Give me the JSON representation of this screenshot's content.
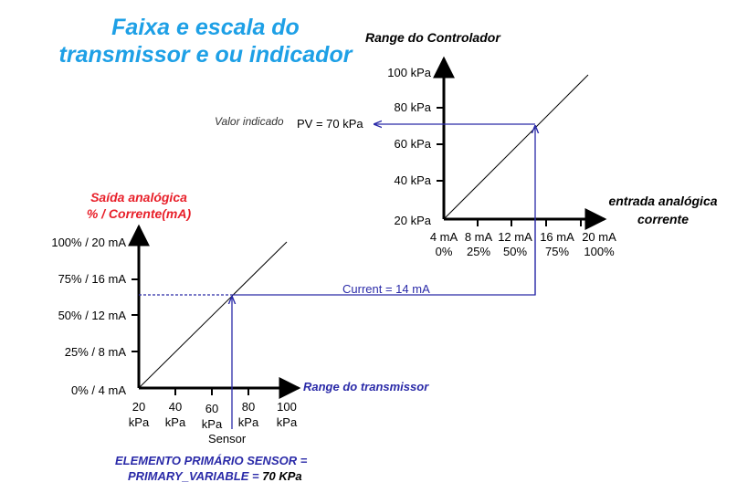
{
  "title": {
    "line1": "Faixa e escala do",
    "line2": "transmissor e ou indicador"
  },
  "controller": {
    "title": "Range do Controlador",
    "y_ticks": [
      "100 kPa",
      "80 kPa",
      "60 kPa",
      "40 kPa",
      "20 kPa"
    ],
    "x_axis_label_1": "entrada analógica",
    "x_axis_label_2": "corrente",
    "x_ticks_ma": [
      "4 mA",
      "8 mA",
      "12 mA",
      "16 mA",
      "20 mA"
    ],
    "x_ticks_pct": [
      "0%",
      "25%",
      "50%",
      "75%",
      "100%"
    ],
    "indicated_label": "Valor indicado",
    "pv_text": "PV = 70 kPa"
  },
  "transmitter": {
    "y_title_1": "Saída analógica",
    "y_title_2": "% / Corrente(mA)",
    "y_ticks": [
      "100% / 20 mA",
      "75% / 16 mA",
      "50% / 12 mA",
      "25% / 8 mA",
      "0% / 4 mA"
    ],
    "x_axis_label": "Range do transmissor",
    "x_ticks_top": [
      "20",
      "40",
      "60",
      "80",
      "100"
    ],
    "x_ticks_bottom": [
      "kPa",
      "kPa",
      "kPa",
      "kPa",
      "kPa"
    ],
    "sensor_label": "Sensor",
    "current_text": "Current = 14 mA"
  },
  "footer": {
    "line1": "ELEMENTO PRIMÁRIO SENSOR =",
    "line2_prefix": "PRIMARY_VARIABLE = ",
    "line2_value": "70 KPa"
  },
  "colors": {
    "title": "#1ea0e6",
    "flow_line": "#2a2aa8",
    "red_title": "#e8202a",
    "axis": "#000000"
  }
}
